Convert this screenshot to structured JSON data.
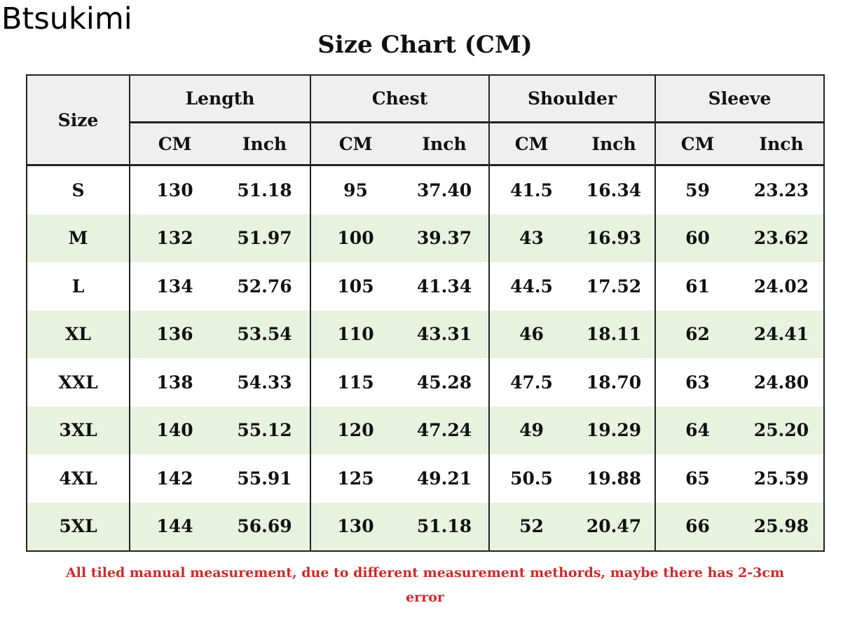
{
  "brand": "Btsukimi",
  "title": "Size Chart (CM)",
  "size_header": "Size",
  "groups": [
    "Length",
    "Chest",
    "Shoulder",
    "Sleeve"
  ],
  "units": [
    "CM",
    "Inch"
  ],
  "rows": [
    [
      "S",
      "130",
      "51.18",
      "95",
      "37.40",
      "41.5",
      "16.34",
      "59",
      "23.23"
    ],
    [
      "M",
      "132",
      "51.97",
      "100",
      "39.37",
      "43",
      "16.93",
      "60",
      "23.62"
    ],
    [
      "L",
      "134",
      "52.76",
      "105",
      "41.34",
      "44.5",
      "17.52",
      "61",
      "24.02"
    ],
    [
      "XL",
      "136",
      "53.54",
      "110",
      "43.31",
      "46",
      "18.11",
      "62",
      "24.41"
    ],
    [
      "XXL",
      "138",
      "54.33",
      "115",
      "45.28",
      "47.5",
      "18.70",
      "63",
      "24.80"
    ],
    [
      "3XL",
      "140",
      "55.12",
      "120",
      "47.24",
      "49",
      "19.29",
      "64",
      "25.20"
    ],
    [
      "4XL",
      "142",
      "55.91",
      "125",
      "49.21",
      "50.5",
      "19.88",
      "65",
      "25.59"
    ],
    [
      "5XL",
      "144",
      "56.69",
      "130",
      "51.18",
      "52",
      "20.47",
      "66",
      "25.98"
    ]
  ],
  "note_line1": "All tiled manual measurement, due to different measurement methords, maybe there has 2-3cm",
  "note_line2": "error",
  "colors": {
    "header_bg": "#efefef",
    "stripe_bg": "#e8f2df",
    "note_text": "#d0292b",
    "border": "#222222"
  }
}
